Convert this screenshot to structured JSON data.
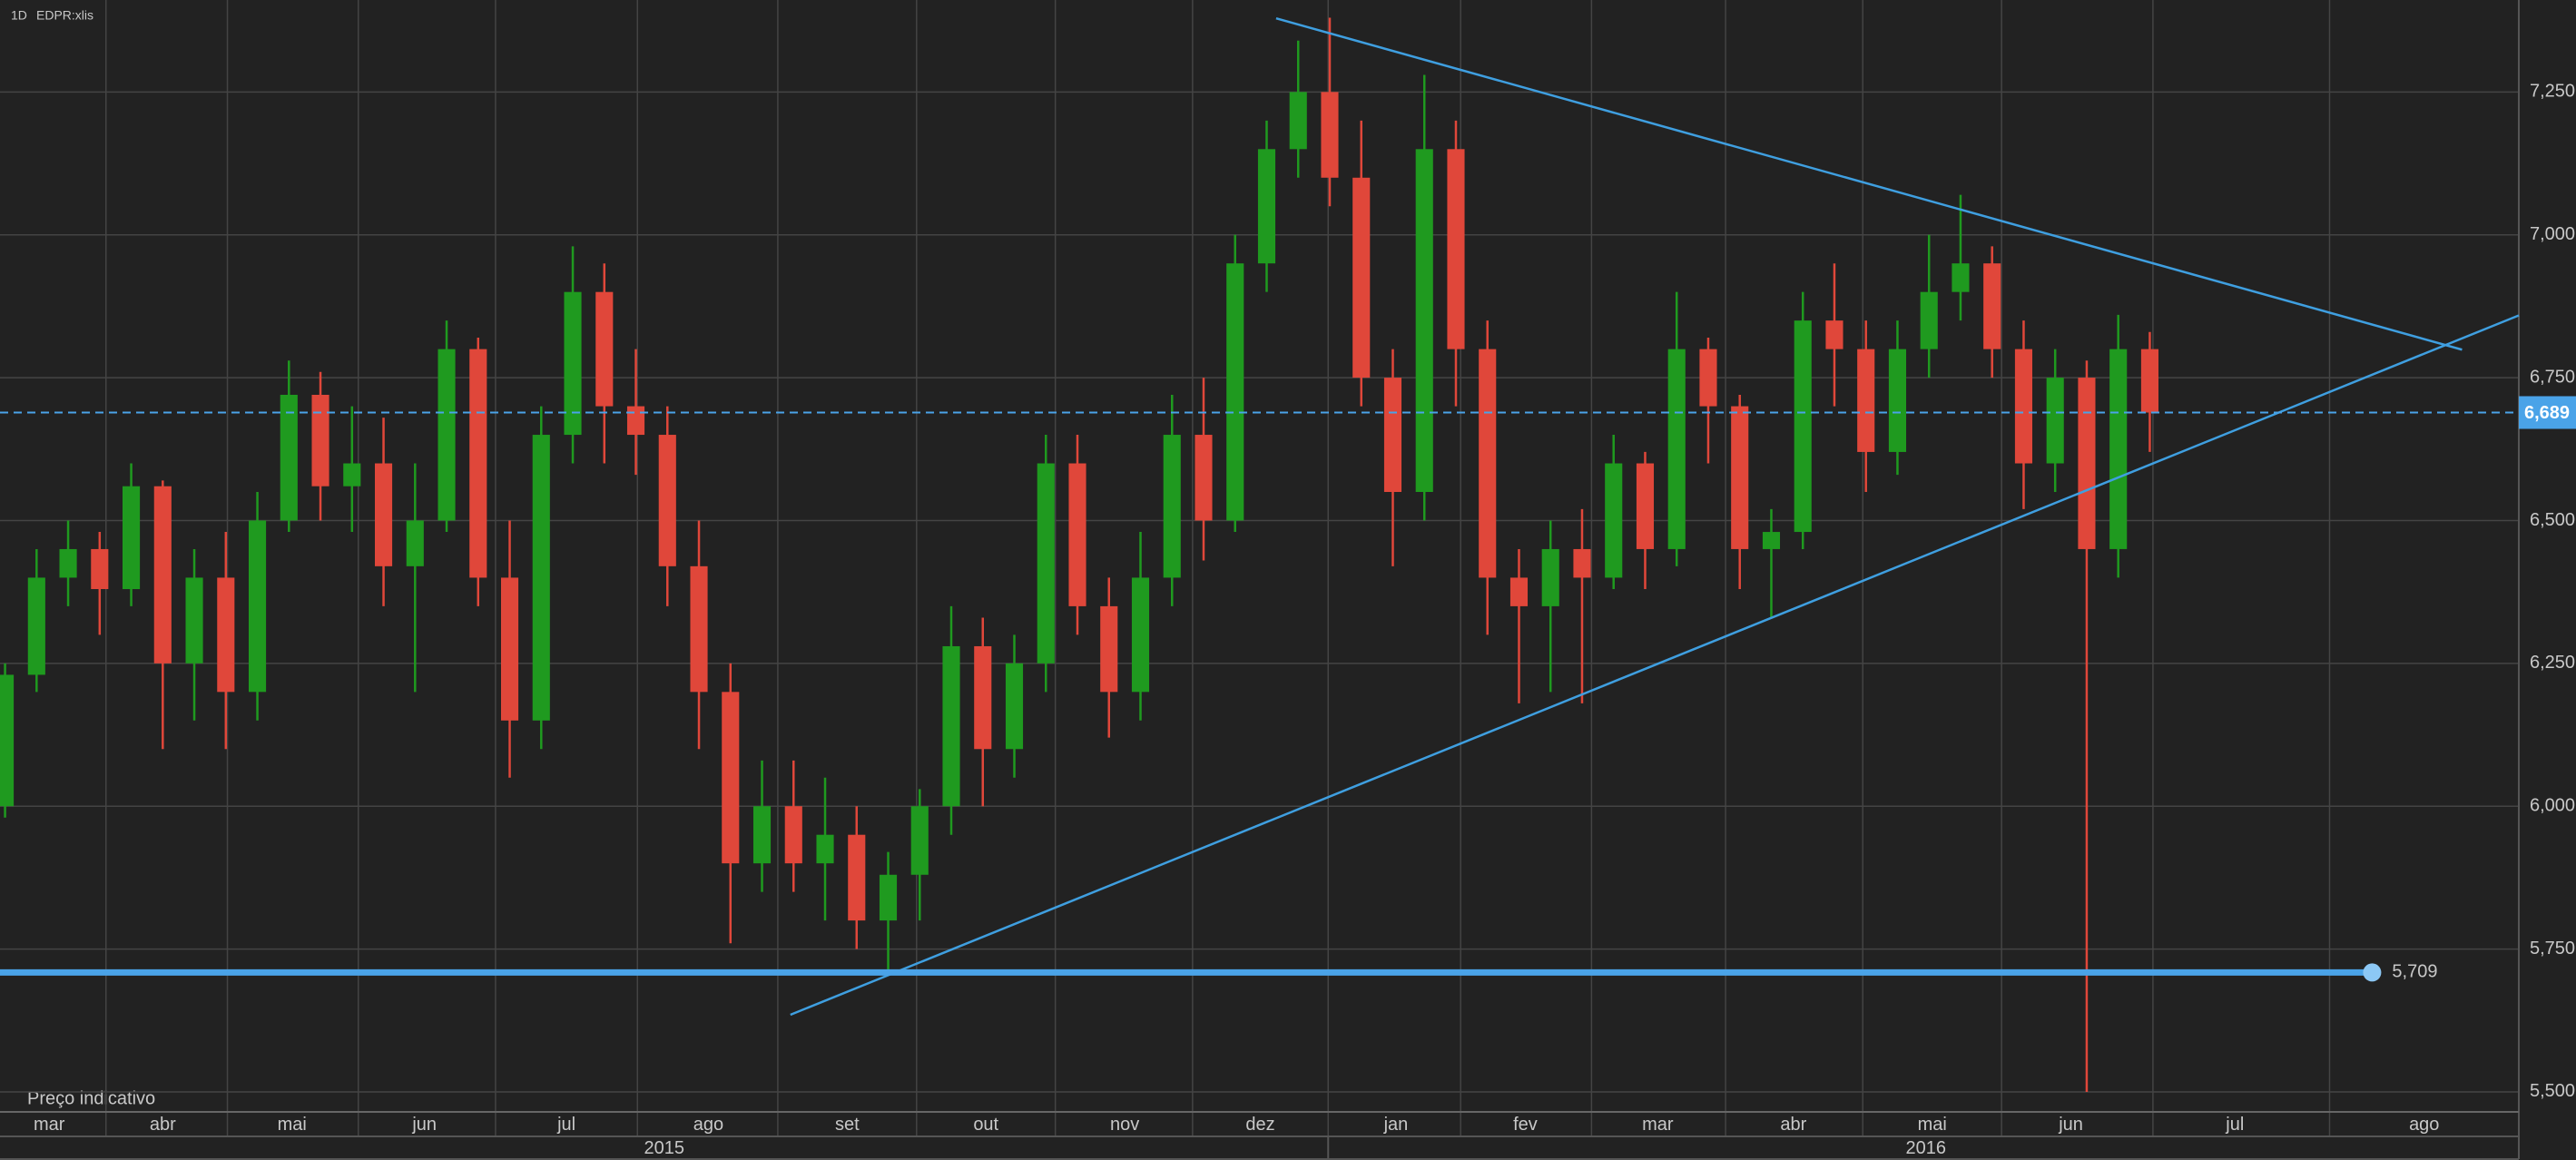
{
  "chart_data": {
    "type": "candlestick",
    "interval": "1D",
    "symbol": "EDPR:xlis",
    "footnote": "Preço indicativo",
    "up_color": "#1f9a1f",
    "down_color": "#e0473a",
    "x": [
      0,
      1,
      2,
      3,
      4,
      5,
      6,
      7,
      8,
      9,
      10,
      11,
      12,
      13,
      14,
      15,
      16,
      17,
      18,
      19,
      20,
      21,
      22,
      23,
      24,
      25,
      26,
      27,
      28,
      29,
      30,
      31,
      32,
      33,
      34,
      35,
      36,
      37,
      38,
      39,
      40,
      41,
      42,
      43,
      44,
      45,
      46,
      47,
      48,
      49,
      50,
      51,
      52,
      53,
      54,
      55,
      56,
      57,
      58,
      59,
      60,
      61,
      62,
      63,
      64,
      65,
      66,
      67,
      68
    ],
    "open": [
      6000,
      6230,
      6400,
      6450,
      6380,
      6560,
      6250,
      6400,
      6200,
      6500,
      6720,
      6560,
      6600,
      6420,
      6500,
      6800,
      6400,
      6150,
      6650,
      6900,
      6700,
      6650,
      6420,
      6200,
      5900,
      6000,
      5900,
      5950,
      5800,
      5880,
      6000,
      6280,
      6100,
      6250,
      6600,
      6350,
      6200,
      6400,
      6650,
      6500,
      6950,
      7150,
      7250,
      7100,
      6750,
      6550,
      7150,
      6800,
      6400,
      6350,
      6450,
      6400,
      6600,
      6450,
      6800,
      6700,
      6450,
      6480,
      6850,
      6800,
      6620,
      6800,
      6900,
      6950,
      6800,
      6600,
      6750,
      6450,
      6800
    ],
    "high": [
      6250,
      6450,
      6500,
      6480,
      6600,
      6570,
      6450,
      6480,
      6550,
      6780,
      6760,
      6700,
      6680,
      6600,
      6850,
      6820,
      6500,
      6700,
      6980,
      6950,
      6800,
      6700,
      6500,
      6250,
      6080,
      6080,
      6050,
      6000,
      5920,
      6030,
      6350,
      6330,
      6300,
      6650,
      6650,
      6400,
      6480,
      6720,
      6750,
      7000,
      7200,
      7340,
      7380,
      7200,
      6800,
      7280,
      7200,
      6850,
      6450,
      6500,
      6520,
      6650,
      6620,
      6900,
      6820,
      6720,
      6520,
      6900,
      6950,
      6850,
      6850,
      7000,
      7070,
      6980,
      6850,
      6800,
      6780,
      6860,
      6830
    ],
    "low": [
      5980,
      6200,
      6350,
      6300,
      6350,
      6100,
      6150,
      6100,
      6150,
      6480,
      6500,
      6480,
      6350,
      6200,
      6480,
      6350,
      6050,
      6100,
      6600,
      6600,
      6580,
      6350,
      6100,
      5760,
      5850,
      5850,
      5800,
      5750,
      5710,
      5800,
      5950,
      6000,
      6050,
      6200,
      6300,
      6120,
      6150,
      6350,
      6430,
      6480,
      6900,
      7100,
      7050,
      6700,
      6420,
      6500,
      6700,
      6300,
      6180,
      6200,
      6180,
      6380,
      6380,
      6420,
      6600,
      6380,
      6330,
      6450,
      6700,
      6550,
      6580,
      6750,
      6850,
      6750,
      6520,
      6550,
      5500,
      6400,
      6620
    ],
    "close": [
      6230,
      6400,
      6450,
      6380,
      6560,
      6250,
      6400,
      6200,
      6500,
      6720,
      6560,
      6600,
      6420,
      6500,
      6800,
      6400,
      6150,
      6650,
      6900,
      6700,
      6650,
      6420,
      6200,
      5900,
      6000,
      5900,
      5950,
      5800,
      5880,
      6000,
      6280,
      6100,
      6250,
      6600,
      6350,
      6200,
      6400,
      6650,
      6500,
      6950,
      7150,
      7250,
      7100,
      6750,
      6550,
      7150,
      6800,
      6400,
      6350,
      6450,
      6400,
      6600,
      6450,
      6800,
      6700,
      6450,
      6480,
      6850,
      6800,
      6620,
      6800,
      6900,
      6950,
      6800,
      6600,
      6750,
      6450,
      6800,
      6689
    ],
    "xlim": [
      -0.16,
      79.7
    ],
    "xticks": [
      {
        "value": 1.4,
        "label": "mar"
      },
      {
        "value": 5.0,
        "label": "abr"
      },
      {
        "value": 9.1,
        "label": "mai"
      },
      {
        "value": 13.3,
        "label": "jun"
      },
      {
        "value": 17.8,
        "label": "jul"
      },
      {
        "value": 22.3,
        "label": "ago"
      },
      {
        "value": 26.7,
        "label": "set"
      },
      {
        "value": 31.1,
        "label": "out"
      },
      {
        "value": 35.5,
        "label": "nov"
      },
      {
        "value": 39.8,
        "label": "dez"
      },
      {
        "value": 44.1,
        "label": "jan"
      },
      {
        "value": 48.2,
        "label": "fev"
      },
      {
        "value": 52.4,
        "label": "mar"
      },
      {
        "value": 56.7,
        "label": "abr"
      },
      {
        "value": 61.1,
        "label": "mai"
      },
      {
        "value": 65.5,
        "label": "jun"
      },
      {
        "value": 70.7,
        "label": "jul"
      },
      {
        "value": 76.7,
        "label": "ago"
      }
    ],
    "x2ticks": [
      {
        "value": 20.9,
        "label": "2015"
      },
      {
        "value": 60.9,
        "label": "2016"
      }
    ],
    "ylim": [
      5465,
      7411
    ],
    "yticks": [
      {
        "value": 5500,
        "label": "5,500"
      },
      {
        "value": 5750,
        "label": "5,750"
      },
      {
        "value": 6000,
        "label": "6,000"
      },
      {
        "value": 6250,
        "label": "6,250"
      },
      {
        "value": 6500,
        "label": "6,500"
      },
      {
        "value": 6750,
        "label": "6,750"
      },
      {
        "value": 7000,
        "label": "7,000"
      },
      {
        "value": 7250,
        "label": "7,250"
      }
    ],
    "grid": true,
    "price_line": {
      "value": 6689,
      "label": "6,689",
      "color": "#4aa3e8"
    },
    "support_line": {
      "value": 5709,
      "label": "5,709",
      "marker_x": 75.05,
      "color": "#4aa3e8"
    },
    "trendlines": [
      {
        "x": [
          40.3,
          77.9
        ],
        "y": [
          7379,
          6799
        ],
        "color": "#3f9fe0"
      },
      {
        "x": [
          24.9,
          79.7
        ],
        "y": [
          5635,
          6859
        ],
        "color": "#3f9fe0"
      }
    ]
  }
}
